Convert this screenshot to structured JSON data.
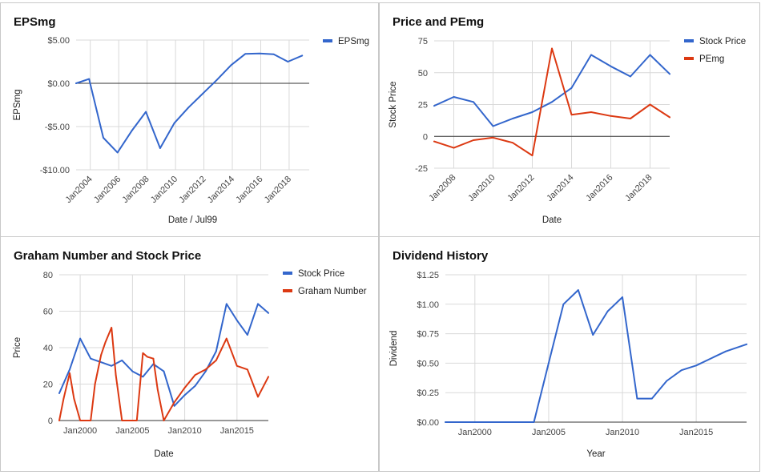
{
  "chart_data": [
    {
      "type": "line",
      "title": "EPSmg",
      "xlabel": "Date / Jul99",
      "ylabel": "EPSmg",
      "x_type": "date",
      "xlim": [
        "2003-01-01",
        "2019-06-01"
      ],
      "ylim": [
        -10,
        5
      ],
      "yticks": [
        5,
        0,
        -5,
        -10
      ],
      "ytick_labels": [
        "$5.00",
        "$0.00",
        "-$5.00",
        "-$10.00"
      ],
      "xticks": [
        "2004-01-01",
        "2006-01-01",
        "2008-01-01",
        "2010-01-01",
        "2012-01-01",
        "2014-01-01",
        "2016-01-01",
        "2018-01-01"
      ],
      "xtick_labels": [
        "Jan2004",
        "Jan2006",
        "Jan2008",
        "Jan2010",
        "Jan2012",
        "Jan2014",
        "Jan2016",
        "Jan2018"
      ],
      "xtick_rotation": true,
      "grid": true,
      "zero_line": true,
      "legend": "right",
      "series": [
        {
          "name": "EPSmg",
          "color": "#3366cc",
          "x": [
            "2003-01-01",
            "2003-12-01",
            "2004-12-01",
            "2005-12-01",
            "2006-12-01",
            "2007-12-01",
            "2008-12-01",
            "2009-12-01",
            "2010-12-01",
            "2011-12-01",
            "2012-12-01",
            "2013-12-01",
            "2014-12-01",
            "2015-12-01",
            "2016-12-01",
            "2017-12-01",
            "2018-12-01"
          ],
          "y": [
            0.0,
            0.5,
            -6.3,
            -8.0,
            -5.5,
            -3.3,
            -7.5,
            -4.6,
            -2.8,
            -1.2,
            0.4,
            2.1,
            3.4,
            3.45,
            3.35,
            2.5,
            3.2
          ]
        }
      ]
    },
    {
      "type": "line",
      "title": "Price and PEmg",
      "xlabel": "Date",
      "ylabel": "Stock Price",
      "x_type": "date",
      "xlim": [
        "2007-01-01",
        "2019-01-01"
      ],
      "ylim": [
        -25,
        75
      ],
      "yticks": [
        75,
        50,
        25,
        0,
        -25
      ],
      "ytick_labels": [
        "75",
        "50",
        "25",
        "0",
        "-25"
      ],
      "xticks": [
        "2008-01-01",
        "2010-01-01",
        "2012-01-01",
        "2014-01-01",
        "2016-01-01",
        "2018-01-01"
      ],
      "xtick_labels": [
        "Jan2008",
        "Jan2010",
        "Jan2012",
        "Jan2014",
        "Jan2016",
        "Jan2018"
      ],
      "xtick_rotation": true,
      "grid": true,
      "zero_line": true,
      "legend": "right",
      "series": [
        {
          "name": "Stock Price",
          "color": "#3366cc",
          "x": [
            "2007-01-01",
            "2008-01-01",
            "2009-01-01",
            "2010-01-01",
            "2011-01-01",
            "2012-01-01",
            "2013-01-01",
            "2014-01-01",
            "2015-01-01",
            "2016-01-01",
            "2017-01-01",
            "2018-01-01",
            "2019-01-01"
          ],
          "y": [
            24,
            31,
            27,
            8,
            14,
            19,
            27,
            38,
            64,
            55,
            47,
            64,
            49
          ]
        },
        {
          "name": "PEmg",
          "color": "#dc3912",
          "x": [
            "2007-01-01",
            "2008-01-01",
            "2009-01-01",
            "2010-01-01",
            "2011-01-01",
            "2012-01-01",
            "2013-01-01",
            "2014-01-01",
            "2015-01-01",
            "2016-01-01",
            "2017-01-01",
            "2018-01-01",
            "2019-01-01"
          ],
          "y": [
            -4,
            -9,
            -3,
            -1,
            -5,
            -15,
            69,
            17,
            19,
            16,
            14,
            25,
            15
          ]
        }
      ]
    },
    {
      "type": "line",
      "title": "Graham Number and Stock Price",
      "xlabel": "Date",
      "ylabel": "Price",
      "x_type": "date",
      "xlim": [
        "1998-01-01",
        "2018-01-01"
      ],
      "ylim": [
        0,
        80
      ],
      "yticks": [
        80,
        60,
        40,
        20,
        0
      ],
      "ytick_labels": [
        "80",
        "60",
        "40",
        "20",
        "0"
      ],
      "xticks": [
        "2000-01-01",
        "2005-01-01",
        "2010-01-01",
        "2015-01-01"
      ],
      "xtick_labels": [
        "Jan2000",
        "Jan2005",
        "Jan2010",
        "Jan2015"
      ],
      "xtick_rotation": false,
      "grid": true,
      "zero_line": false,
      "legend": "right",
      "series": [
        {
          "name": "Stock Price",
          "color": "#3366cc",
          "x": [
            "1998-01-01",
            "1999-01-01",
            "2000-01-01",
            "2001-01-01",
            "2002-01-01",
            "2003-01-01",
            "2004-01-01",
            "2005-01-01",
            "2006-01-01",
            "2007-01-01",
            "2008-01-01",
            "2009-01-01",
            "2010-01-01",
            "2011-01-01",
            "2012-01-01",
            "2013-01-01",
            "2014-01-01",
            "2015-01-01",
            "2016-01-01",
            "2017-01-01",
            "2018-01-01"
          ],
          "y": [
            15,
            28,
            45,
            34,
            32,
            30,
            33,
            27,
            24,
            31,
            27,
            8,
            14,
            19,
            27,
            38,
            64,
            55,
            47,
            64,
            59
          ]
        },
        {
          "name": "Graham Number",
          "color": "#dc3912",
          "x": [
            "1998-01-01",
            "1998-06-01",
            "1999-01-01",
            "1999-06-01",
            "2000-01-01",
            "2000-06-01",
            "2001-01-01",
            "2001-06-01",
            "2002-01-01",
            "2002-06-01",
            "2003-01-01",
            "2003-06-01",
            "2004-01-01",
            "2004-06-01",
            "2005-01-01",
            "2005-06-01",
            "2006-01-01",
            "2006-06-01",
            "2007-01-01",
            "2007-06-01",
            "2008-01-01",
            "2009-01-01",
            "2010-01-01",
            "2011-01-01",
            "2012-01-01",
            "2013-01-01",
            "2014-01-01",
            "2015-01-01",
            "2016-01-01",
            "2017-01-01",
            "2018-01-01"
          ],
          "y": [
            0,
            12,
            26,
            12,
            0,
            0,
            0,
            20,
            36,
            43,
            51,
            25,
            0,
            0,
            0,
            0,
            37,
            35,
            34,
            17,
            0,
            10,
            18,
            25,
            28,
            33,
            45,
            30,
            28,
            13,
            24
          ]
        }
      ]
    },
    {
      "type": "line",
      "title": "Dividend History",
      "xlabel": "Year",
      "ylabel": "Dividend",
      "x_type": "date",
      "xlim": [
        "1998-01-01",
        "2018-06-01"
      ],
      "ylim": [
        0,
        1.25
      ],
      "yticks": [
        1.25,
        1.0,
        0.75,
        0.5,
        0.25,
        0
      ],
      "ytick_labels": [
        "$1.25",
        "$1.00",
        "$0.75",
        "$0.50",
        "$0.25",
        "$0.00"
      ],
      "xticks": [
        "2000-01-01",
        "2005-01-01",
        "2010-01-01",
        "2015-01-01"
      ],
      "xtick_labels": [
        "Jan2000",
        "Jan2005",
        "Jan2010",
        "Jan2015"
      ],
      "xtick_rotation": false,
      "grid": true,
      "zero_line": false,
      "legend": "none",
      "series": [
        {
          "name": "",
          "color": "#3366cc",
          "x": [
            "1998-01-01",
            "2000-01-01",
            "2002-01-01",
            "2003-01-01",
            "2004-01-01",
            "2005-01-01",
            "2006-01-01",
            "2007-01-01",
            "2008-01-01",
            "2009-01-01",
            "2010-01-01",
            "2011-01-01",
            "2012-01-01",
            "2013-01-01",
            "2014-01-01",
            "2015-01-01",
            "2016-01-01",
            "2017-01-01",
            "2018-06-01"
          ],
          "y": [
            0,
            0,
            0,
            0,
            0,
            0.5,
            1.0,
            1.12,
            0.74,
            0.94,
            1.06,
            0.2,
            0.2,
            0.35,
            0.44,
            0.48,
            0.54,
            0.6,
            0.66
          ]
        }
      ]
    }
  ]
}
